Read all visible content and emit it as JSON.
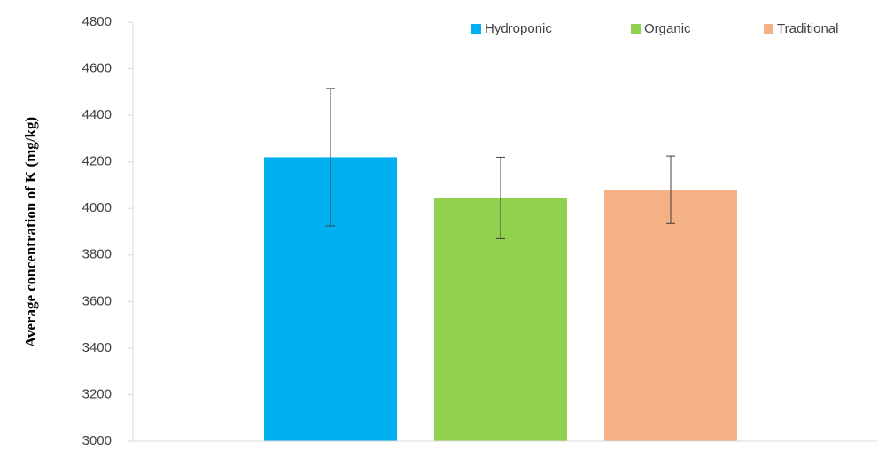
{
  "chart_data": {
    "type": "bar",
    "y_label": "Average concentration of K (mg/kg)",
    "categories": [
      null
    ],
    "series": [
      {
        "name": "Hydroponic",
        "color": "#00b0f0",
        "values": [
          4220
        ],
        "errors": [
          295
        ]
      },
      {
        "name": "Organic",
        "color": "#92d050",
        "values": [
          4045
        ],
        "errors": [
          175
        ]
      },
      {
        "name": "Traditional",
        "color": "#f4b183",
        "values": [
          4080
        ],
        "errors": [
          145
        ]
      }
    ],
    "ylim": [
      3000,
      4800
    ],
    "yticks": [
      3000,
      3200,
      3400,
      3600,
      3800,
      4000,
      4200,
      4400,
      4600,
      4800
    ],
    "grid": false,
    "legend": "top-right"
  }
}
